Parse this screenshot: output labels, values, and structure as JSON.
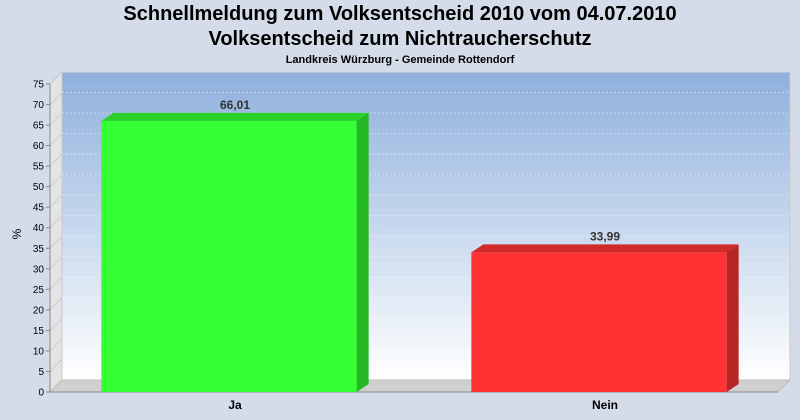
{
  "title_line1": "Schnellmeldung zum Volksentscheid 2010 vom 04.07.2010",
  "title_line2": "Volksentscheid zum Nichtraucherschutz",
  "subtitle": "Landkreis Würzburg - Gemeinde Rottendorf",
  "chart_data": {
    "type": "bar",
    "title": "Schnellmeldung zum Volksentscheid 2010 vom 04.07.2010",
    "subtitle": "Volksentscheid zum Nichtraucherschutz — Landkreis Würzburg - Gemeinde Rottendorf",
    "categories": [
      "Ja",
      "Nein"
    ],
    "values": [
      66.01,
      33.99
    ],
    "value_labels": [
      "66,01",
      "33,99"
    ],
    "colors": [
      "#33ff33",
      "#ff3333"
    ],
    "xlabel": "",
    "ylabel": "%",
    "ylim": [
      0,
      75
    ],
    "yticks": [
      0,
      5,
      10,
      15,
      20,
      25,
      30,
      35,
      40,
      45,
      50,
      55,
      60,
      65,
      70,
      75
    ],
    "grid": true,
    "legend": "none"
  }
}
